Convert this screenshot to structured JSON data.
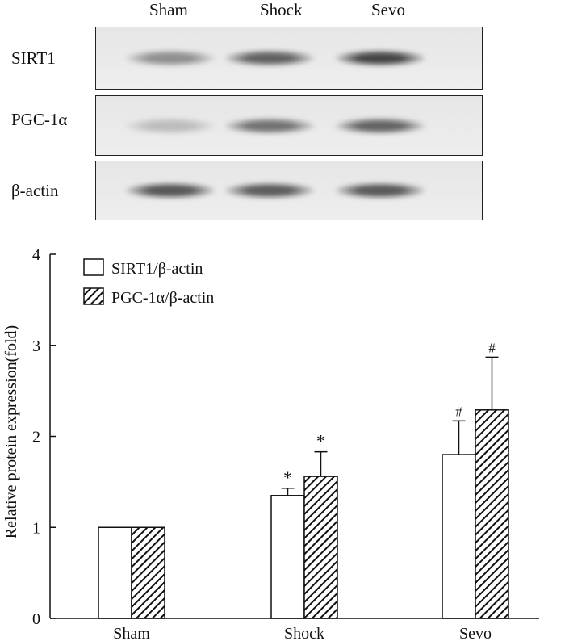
{
  "blot": {
    "lanes": [
      "Sham",
      "Shock",
      "Sevo"
    ],
    "rows": [
      {
        "label": "SIRT1",
        "intensity": [
          0.45,
          0.7,
          0.85
        ]
      },
      {
        "label": "PGC-1α",
        "intensity": [
          0.2,
          0.6,
          0.68
        ]
      },
      {
        "label": "β-actin",
        "intensity": [
          0.75,
          0.72,
          0.74
        ]
      }
    ]
  },
  "chart_data": {
    "type": "bar",
    "categories": [
      "Sham",
      "Shock",
      "Sevo"
    ],
    "ylabel": "Relative protein expression(fold)",
    "xlabel": "",
    "ylim": [
      0,
      4
    ],
    "yticks": [
      0,
      1,
      2,
      3,
      4
    ],
    "legend_position": "top-left",
    "series": [
      {
        "name": "SIRT1/β-actin",
        "fill": "white",
        "values": [
          1.0,
          1.35,
          1.8
        ],
        "errors": [
          0,
          0.08,
          0.37
        ],
        "markers": [
          "",
          "*",
          "#"
        ]
      },
      {
        "name": "PGC-1α/β-actin",
        "fill": "hatched",
        "values": [
          1.0,
          1.56,
          2.29
        ],
        "errors": [
          0,
          0.27,
          0.58
        ],
        "markers": [
          "",
          "*",
          "#"
        ]
      }
    ]
  }
}
